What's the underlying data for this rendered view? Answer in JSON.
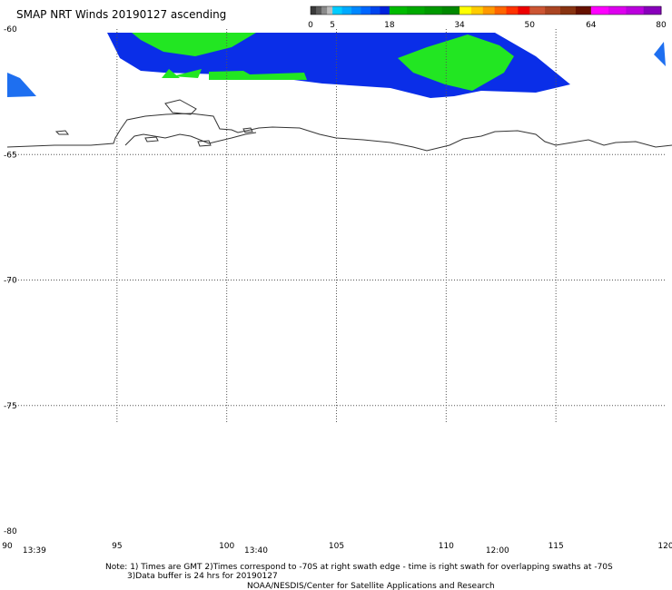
{
  "title": "SMAP NRT Winds 20190127 ascending",
  "colorbar": {
    "tick_labels": [
      "0",
      "5",
      "18",
      "34",
      "50",
      "64",
      "80"
    ],
    "tick_values": [
      0,
      5,
      18,
      34,
      50,
      64,
      80
    ],
    "segments": [
      {
        "from": 0,
        "to": 5,
        "colors": [
          "#3a3a3a",
          "#5c5c5c",
          "#8a8a8a",
          "#bdbdbd"
        ]
      },
      {
        "from": 5,
        "to": 18,
        "colors": [
          "#00ccff",
          "#00aaff",
          "#0088ff",
          "#0066ff",
          "#0044ee",
          "#0022dd"
        ]
      },
      {
        "from": 18,
        "to": 34,
        "colors": [
          "#00bb00",
          "#00aa00",
          "#009900",
          "#008800"
        ]
      },
      {
        "from": 34,
        "to": 50,
        "colors": [
          "#ffff00",
          "#ffcc00",
          "#ff9900",
          "#ff6600",
          "#ff3300",
          "#ee0000"
        ]
      },
      {
        "from": 50,
        "to": 64,
        "colors": [
          "#cc5533",
          "#aa4422",
          "#883311",
          "#661100"
        ]
      },
      {
        "from": 64,
        "to": 80,
        "colors": [
          "#ff00ff",
          "#dd00ee",
          "#bb00dd",
          "#8800bb"
        ]
      }
    ]
  },
  "map": {
    "lon_range": [
      90,
      120
    ],
    "lat_range": [
      -60,
      -80
    ],
    "lat_labels": [
      "-60",
      "-65",
      "-70",
      "-75",
      "-80"
    ],
    "lat_values": [
      -60,
      -65,
      -70,
      -75,
      -80
    ],
    "lon_labels": [
      "90",
      "95",
      "100",
      "105",
      "110",
      "115",
      "120"
    ],
    "lon_values": [
      90,
      95,
      100,
      105,
      110,
      115,
      120
    ],
    "time_labels": [
      {
        "text": "13:39",
        "lon": 90.7
      },
      {
        "text": "13:40",
        "lon": 100.8
      },
      {
        "text": "12:00",
        "lon": 111.8
      }
    ],
    "colors": {
      "wind_blue": "#0a2ee8",
      "wind_light_blue": "#1e6ff0",
      "wind_green": "#22e622",
      "coastline": "#333333",
      "grid": "#555555"
    }
  },
  "notes": {
    "line1": "Note: 1) Times are GMT 2)Times correspond to -70S at right swath edge - time is right swath for overlapping swaths at -70S",
    "line2": "3)Data buffer is 24 hrs for 20190127",
    "line3": "NOAA/NESDIS/Center for Satellite Applications and Research"
  }
}
